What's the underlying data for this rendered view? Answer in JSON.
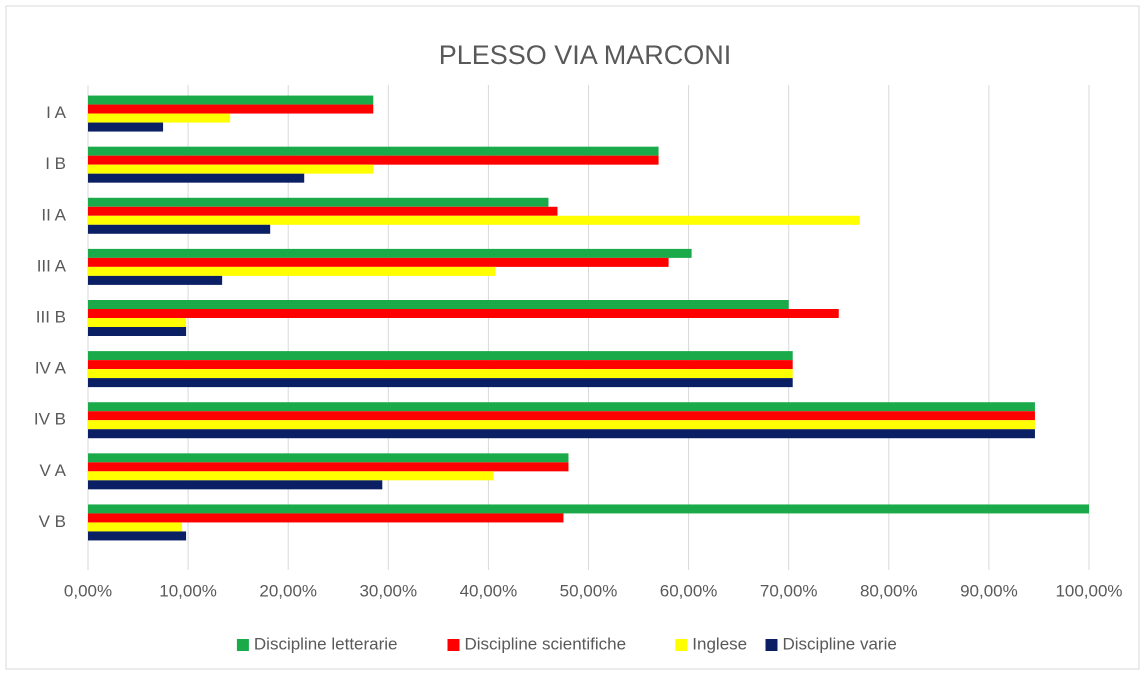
{
  "chart_data": {
    "type": "hbar",
    "title": "PLESSO VIA MARCONI",
    "categories": [
      "I A",
      "I B",
      "II A",
      "III A",
      "III B",
      "IV A",
      "IV B",
      "V A",
      "V B"
    ],
    "series": [
      {
        "name": "Discipline letterarie",
        "color": "#1aaa4a",
        "values": [
          28.5,
          57,
          46,
          60.3,
          70,
          70.4,
          94.6,
          48,
          100
        ]
      },
      {
        "name": "Discipline scientifiche",
        "color": "#ff0000",
        "values": [
          28.5,
          57,
          46.9,
          58,
          75,
          70.4,
          94.6,
          48,
          47.5
        ]
      },
      {
        "name": "Inglese",
        "color": "#ffff00",
        "values": [
          14.2,
          28.5,
          77.1,
          40.7,
          9.8,
          70.4,
          94.6,
          40.5,
          9.4
        ]
      },
      {
        "name": "Discipline varie",
        "color": "#0a1f64",
        "values": [
          7.5,
          21.6,
          18.2,
          13.4,
          9.8,
          70.4,
          94.6,
          29.4,
          9.8
        ]
      }
    ],
    "xlim": [
      0,
      100
    ],
    "xticks": [
      {
        "value": 0,
        "label": "0,00%"
      },
      {
        "value": 10,
        "label": "10,00%"
      },
      {
        "value": 20,
        "label": "20,00%"
      },
      {
        "value": 30,
        "label": "30,00%"
      },
      {
        "value": 40,
        "label": "40,00%"
      },
      {
        "value": 50,
        "label": "50,00%"
      },
      {
        "value": 60,
        "label": "60,00%"
      },
      {
        "value": 70,
        "label": "70,00%"
      },
      {
        "value": 80,
        "label": "80,00%"
      },
      {
        "value": 90,
        "label": "90,00%"
      },
      {
        "value": 100,
        "label": "100,00%"
      }
    ],
    "grid": true,
    "legend": "bottom"
  }
}
